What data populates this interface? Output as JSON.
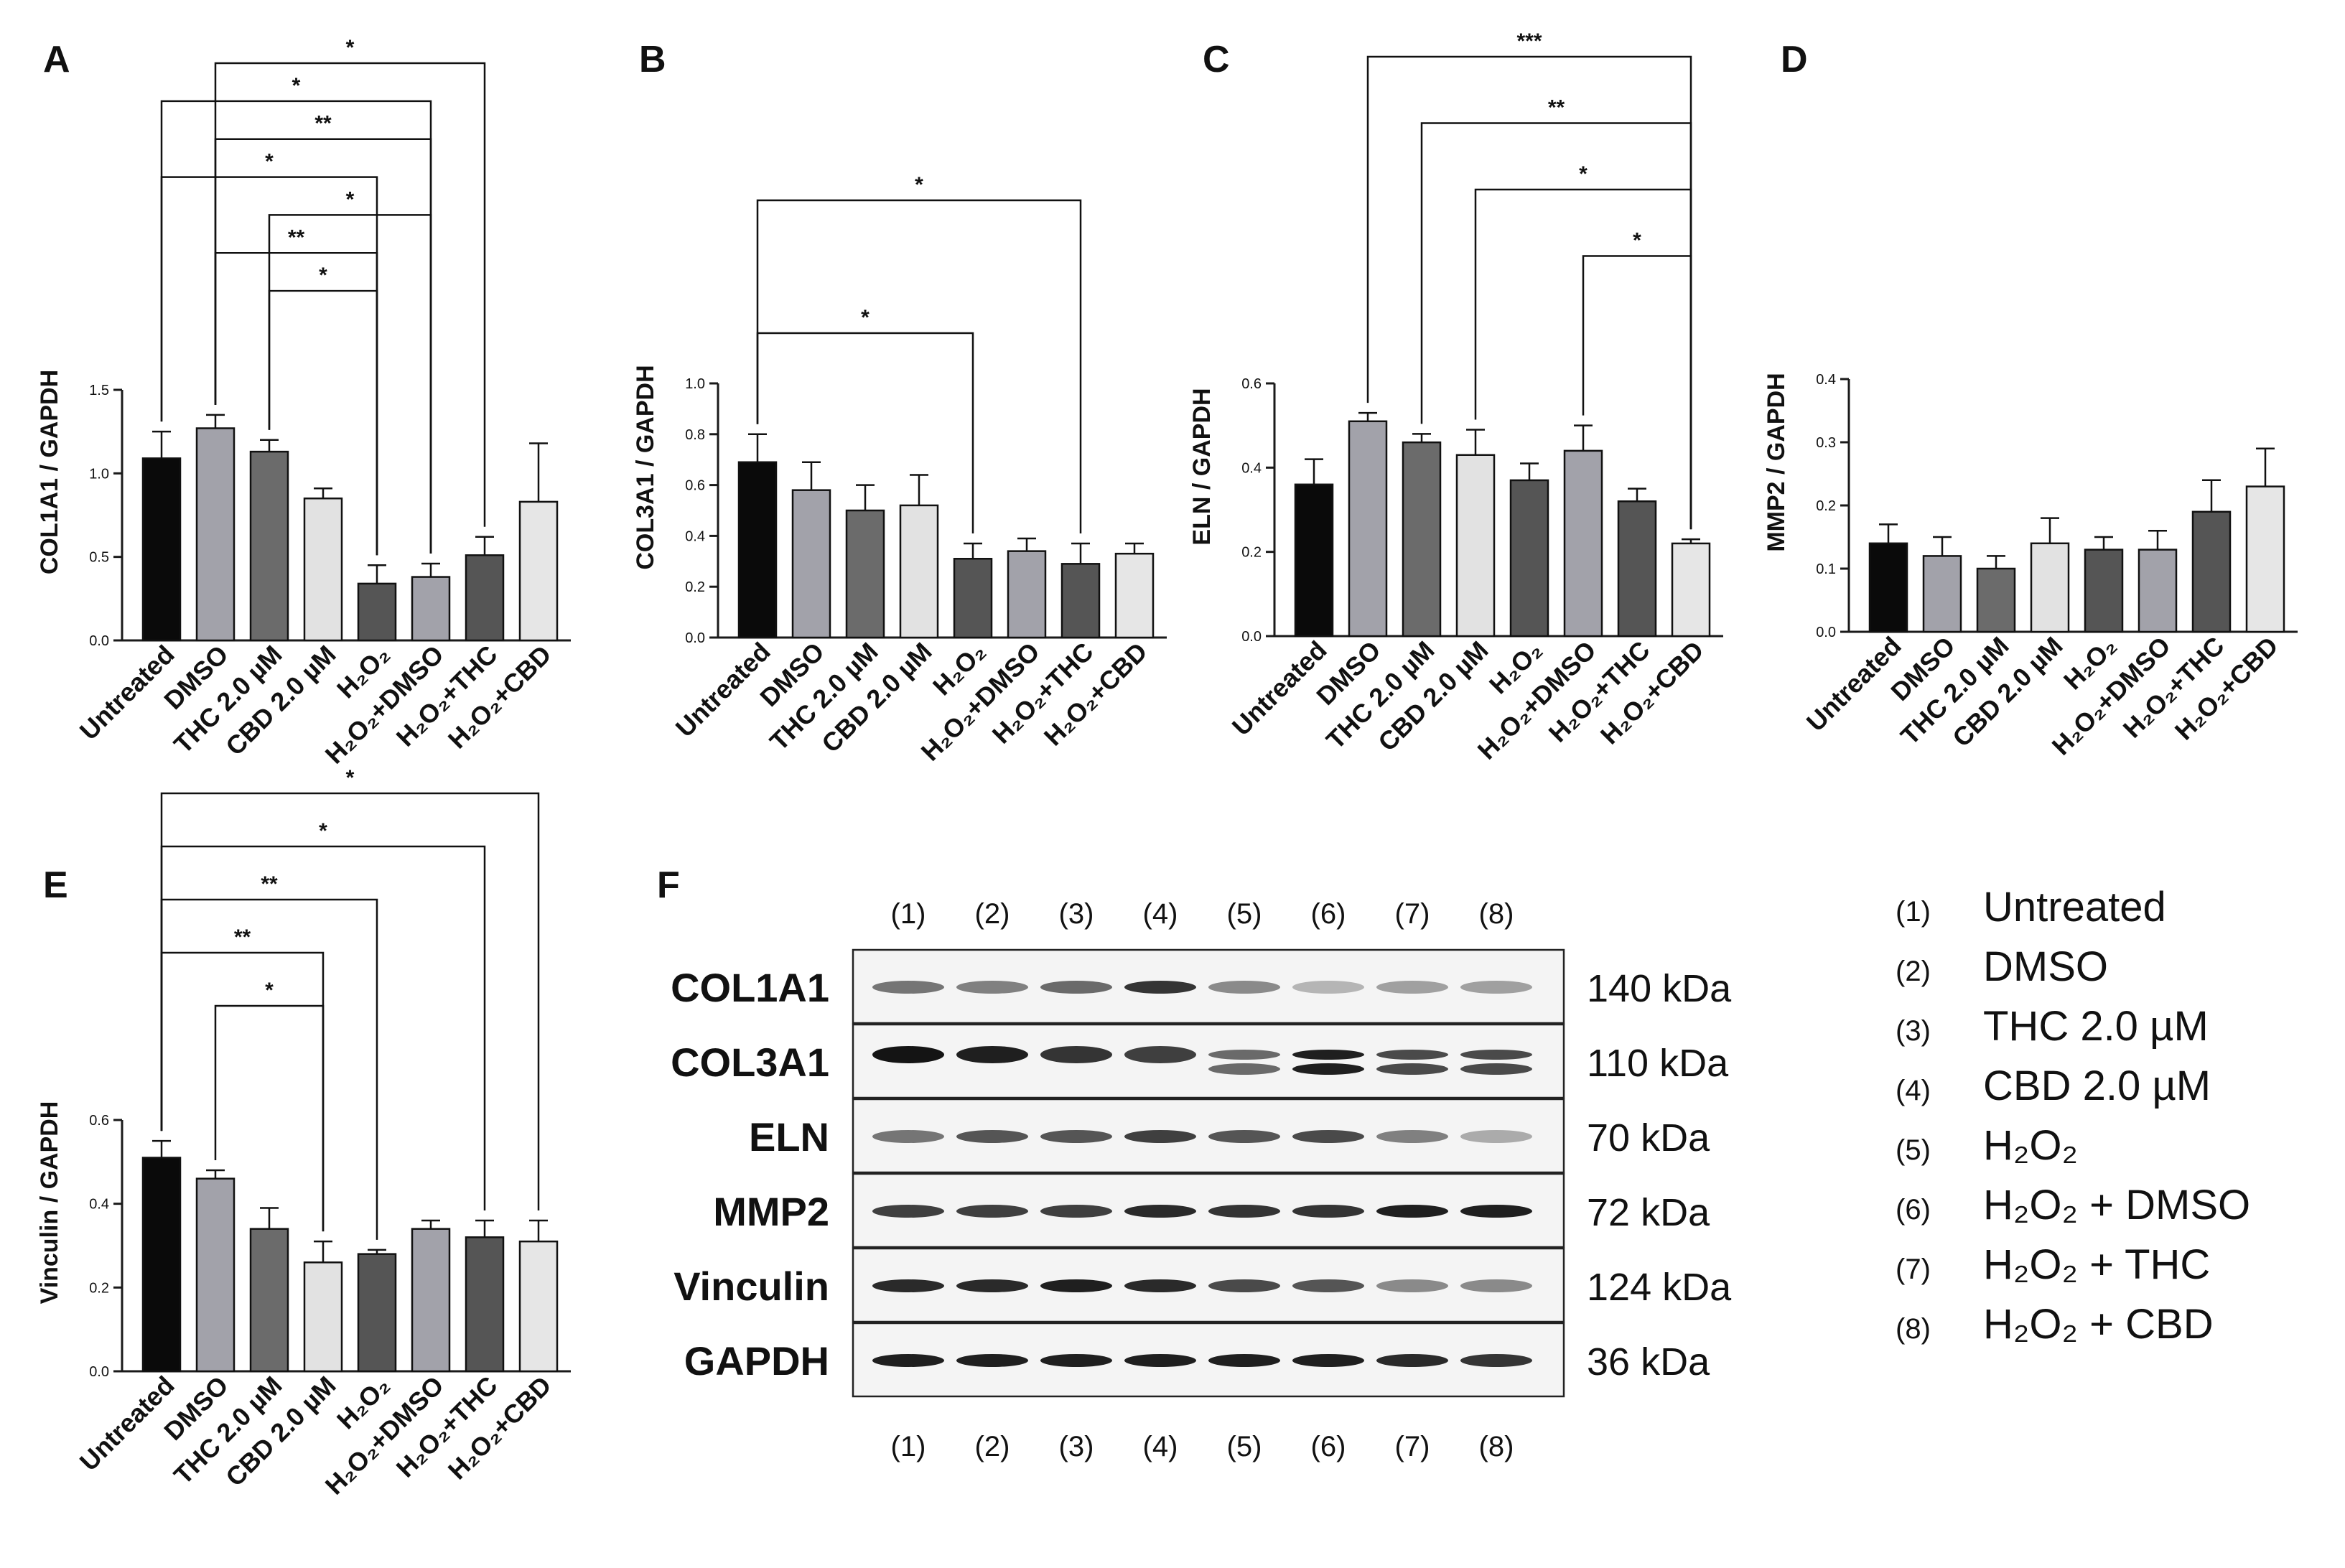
{
  "colors": {
    "untreated": "#0a0a0a",
    "dmso": "#a2a2aa",
    "thc": "#6b6b6b",
    "cbd": "#e2e2e2",
    "h2o2": "#555555",
    "h2o2_dmso": "#a2a2aa",
    "h2o2_thc": "#555555",
    "h2o2_cbd": "#e6e6e6",
    "axis": "#1a1a1a"
  },
  "categories": [
    "Untreated",
    "DMSO",
    "THC 2.0 µM",
    "CBD 2.0 µM",
    "H₂O₂",
    "H₂O₂+DMSO",
    "H₂O₂+THC",
    "H₂O₂+CBD"
  ],
  "chart_data": [
    {
      "panel": "A",
      "type": "bar",
      "ylabel": "COL1A1 / GAPDH",
      "ylim": [
        0,
        1.5
      ],
      "yticks": [
        "0.0",
        "0.5",
        "1.0",
        "1.5"
      ],
      "values": [
        1.09,
        1.27,
        1.13,
        0.85,
        0.34,
        0.38,
        0.51,
        0.83
      ],
      "errors": [
        0.16,
        0.08,
        0.07,
        0.06,
        0.11,
        0.08,
        0.11,
        0.35
      ],
      "brackets": [
        {
          "from": 1,
          "to": 6,
          "label": "*"
        },
        {
          "from": 0,
          "to": 5,
          "label": "*"
        },
        {
          "from": 1,
          "to": 5,
          "label": "**"
        },
        {
          "from": 0,
          "to": 4,
          "label": "*"
        },
        {
          "from": 2,
          "to": 5,
          "label": "*"
        },
        {
          "from": 1,
          "to": 4,
          "label": "**"
        },
        {
          "from": 2,
          "to": 4,
          "label": "*"
        }
      ]
    },
    {
      "panel": "B",
      "type": "bar",
      "ylabel": "COL3A1 / GAPDH",
      "ylim": [
        0,
        1.0
      ],
      "yticks": [
        "0.0",
        "0.2",
        "0.4",
        "0.6",
        "0.8",
        "1.0"
      ],
      "values": [
        0.69,
        0.58,
        0.5,
        0.52,
        0.31,
        0.34,
        0.29,
        0.33
      ],
      "errors": [
        0.11,
        0.11,
        0.1,
        0.12,
        0.06,
        0.05,
        0.08,
        0.04
      ],
      "brackets": [
        {
          "from": 0,
          "to": 6,
          "label": "*"
        },
        {
          "from": 0,
          "to": 4,
          "label": "*"
        }
      ]
    },
    {
      "panel": "C",
      "type": "bar",
      "ylabel": "ELN / GAPDH",
      "ylim": [
        0,
        0.6
      ],
      "yticks": [
        "0.0",
        "0.2",
        "0.4",
        "0.6"
      ],
      "values": [
        0.36,
        0.51,
        0.46,
        0.43,
        0.37,
        0.44,
        0.32,
        0.22
      ],
      "errors": [
        0.06,
        0.02,
        0.02,
        0.06,
        0.04,
        0.06,
        0.03,
        0.01
      ],
      "brackets": [
        {
          "from": 1,
          "to": 7,
          "label": "***"
        },
        {
          "from": 2,
          "to": 7,
          "label": "**"
        },
        {
          "from": 3,
          "to": 7,
          "label": "*"
        },
        {
          "from": 5,
          "to": 7,
          "label": "*"
        }
      ]
    },
    {
      "panel": "D",
      "type": "bar",
      "ylabel": "MMP2 / GAPDH",
      "ylim": [
        0,
        0.4
      ],
      "yticks": [
        "0.0",
        "0.1",
        "0.2",
        "0.3",
        "0.4"
      ],
      "values": [
        0.14,
        0.12,
        0.1,
        0.14,
        0.13,
        0.13,
        0.19,
        0.23
      ],
      "errors": [
        0.03,
        0.03,
        0.02,
        0.04,
        0.02,
        0.03,
        0.05,
        0.06
      ],
      "brackets": []
    },
    {
      "panel": "E",
      "type": "bar",
      "ylabel": "Vinculin / GAPDH",
      "ylim": [
        0,
        0.6
      ],
      "yticks": [
        "0.0",
        "0.2",
        "0.4",
        "0.6"
      ],
      "values": [
        0.51,
        0.46,
        0.34,
        0.26,
        0.28,
        0.34,
        0.32,
        0.31
      ],
      "errors": [
        0.04,
        0.02,
        0.05,
        0.05,
        0.01,
        0.02,
        0.04,
        0.05
      ],
      "brackets": [
        {
          "from": 0,
          "to": 7,
          "label": "*"
        },
        {
          "from": 0,
          "to": 6,
          "label": "*"
        },
        {
          "from": 0,
          "to": 4,
          "label": "**"
        },
        {
          "from": 0,
          "to": 3,
          "label": "**"
        },
        {
          "from": 1,
          "to": 3,
          "label": "*"
        }
      ]
    }
  ],
  "blot": {
    "panel": "F",
    "lanes": [
      "(1)",
      "(2)",
      "(3)",
      "(4)",
      "(5)",
      "(6)",
      "(7)",
      "(8)"
    ],
    "rows": [
      {
        "name": "COL1A1",
        "kda": "140 kDa",
        "intensity": [
          0.55,
          0.5,
          0.6,
          0.85,
          0.45,
          0.25,
          0.35,
          0.35
        ],
        "double": false
      },
      {
        "name": "COL3A1",
        "kda": "110 kDa",
        "intensity": [
          1.0,
          0.95,
          0.85,
          0.8,
          0.6,
          0.95,
          0.75,
          0.75
        ],
        "double": true
      },
      {
        "name": "ELN",
        "kda": "70 kDa",
        "intensity": [
          0.55,
          0.7,
          0.7,
          0.8,
          0.7,
          0.75,
          0.5,
          0.3
        ],
        "double": false
      },
      {
        "name": "MMP2",
        "kda": "72 kDa",
        "intensity": [
          0.8,
          0.8,
          0.8,
          0.9,
          0.85,
          0.85,
          0.95,
          0.95
        ],
        "double": false
      },
      {
        "name": "Vinculin",
        "kda": "124 kDa",
        "intensity": [
          0.9,
          0.9,
          0.95,
          0.9,
          0.75,
          0.7,
          0.45,
          0.45
        ],
        "double": false
      },
      {
        "name": "GAPDH",
        "kda": "36 kDa",
        "intensity": [
          0.95,
          0.95,
          0.95,
          0.95,
          0.95,
          0.95,
          0.9,
          0.85
        ],
        "double": false
      }
    ]
  },
  "legend": [
    {
      "num": "(1)",
      "label": "Untreated"
    },
    {
      "num": "(2)",
      "label": "DMSO"
    },
    {
      "num": "(3)",
      "label": "THC 2.0 µM"
    },
    {
      "num": "(4)",
      "label": "CBD 2.0 µM"
    },
    {
      "num": "(5)",
      "label": "H₂O₂"
    },
    {
      "num": "(6)",
      "label": "H₂O₂ + DMSO"
    },
    {
      "num": "(7)",
      "label": "H₂O₂ + THC"
    },
    {
      "num": "(8)",
      "label": "H₂O₂ + CBD"
    }
  ]
}
